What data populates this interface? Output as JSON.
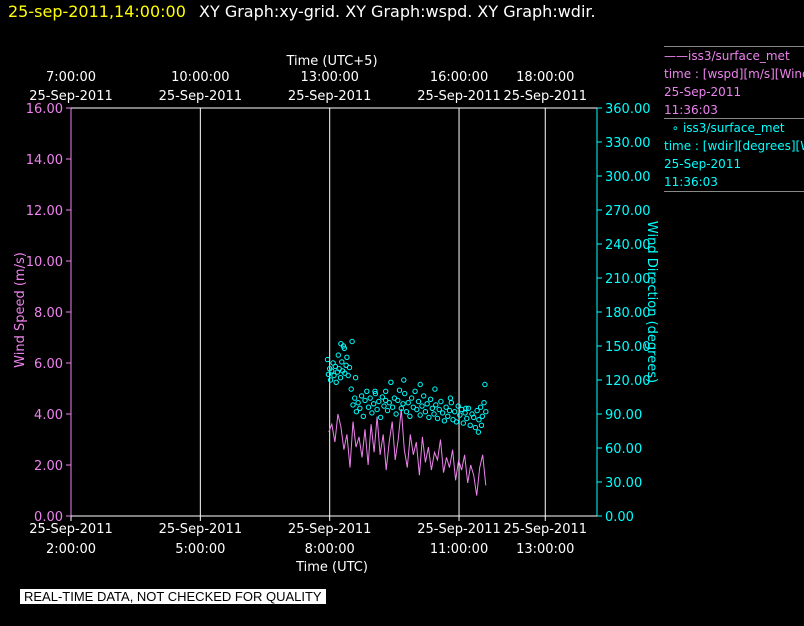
{
  "header": {
    "timestamp": "25-sep-2011,14:00:00",
    "titles": "XY Graph:xy-grid.  XY Graph:wspd.  XY Graph:wdir."
  },
  "legend": {
    "entries": [
      {
        "symbol": "——",
        "source": "iss3/surface_met",
        "line1": "time : [wspd][m/s][Wind",
        "date": "25-Sep-2011",
        "time": "11:36:03",
        "color": "#ee82ee"
      },
      {
        "symbol": "∘",
        "source": "iss3/surface_met",
        "line1": "time : [wdir][degrees][W",
        "date": "25-Sep-2011",
        "time": "11:36:03",
        "color": "#00ffff"
      }
    ]
  },
  "quality_note": "REAL-TIME DATA, NOT CHECKED FOR QUALITY",
  "colors": {
    "wspd": "#ee82ee",
    "wdir": "#00ffff",
    "grid": "#ffffff",
    "header": "#ffff00"
  },
  "chart_data": {
    "type": "line",
    "x_range_hours": [
      0.0,
      12.2
    ],
    "xlabel_bottom": "Time (UTC)",
    "xlabel_top": "Time (UTC+5)",
    "x_ticks": [
      {
        "x": 0.0,
        "bottom": [
          "25-Sep-2011",
          "2:00:00"
        ],
        "top": [
          "7:00:00",
          "25-Sep-2011"
        ]
      },
      {
        "x": 3.0,
        "bottom": [
          "25-Sep-2011",
          "5:00:00"
        ],
        "top": [
          "10:00:00",
          "25-Sep-2011"
        ]
      },
      {
        "x": 6.0,
        "bottom": [
          "25-Sep-2011",
          "8:00:00"
        ],
        "top": [
          "13:00:00",
          "25-Sep-2011"
        ]
      },
      {
        "x": 9.0,
        "bottom": [
          "25-Sep-2011",
          "11:00:00"
        ],
        "top": [
          "16:00:00",
          "25-Sep-2011"
        ]
      },
      {
        "x": 11.0,
        "bottom": [
          "25-Sep-2011",
          "13:00:00"
        ],
        "top": [
          "18:00:00",
          "25-Sep-2011"
        ]
      }
    ],
    "left_axis": {
      "label": "Wind Speed (m/s)",
      "range": [
        0,
        16
      ],
      "ticks": [
        "0.00",
        "2.00",
        "4.00",
        "6.00",
        "8.00",
        "10.00",
        "12.00",
        "14.00",
        "16.00"
      ]
    },
    "right_axis": {
      "label": "Wind Direction (degrees)",
      "range": [
        0,
        360
      ],
      "ticks": [
        "0.00",
        "30.00",
        "60.00",
        "90.00",
        "120.00",
        "150.00",
        "180.00",
        "210.00",
        "240.00",
        "270.00",
        "300.00",
        "330.00",
        "360.00"
      ]
    },
    "grid": "vertical",
    "series": [
      {
        "name": "iss3/surface_met time : [wspd][m/s]",
        "axis": "left",
        "style": "line",
        "x": [
          5.98,
          6.05,
          6.12,
          6.19,
          6.26,
          6.33,
          6.4,
          6.47,
          6.54,
          6.61,
          6.68,
          6.75,
          6.82,
          6.89,
          6.96,
          7.03,
          7.1,
          7.17,
          7.24,
          7.31,
          7.38,
          7.45,
          7.52,
          7.59,
          7.66,
          7.73,
          7.8,
          7.87,
          7.94,
          8.01,
          8.08,
          8.15,
          8.22,
          8.29,
          8.36,
          8.43,
          8.5,
          8.57,
          8.64,
          8.71,
          8.78,
          8.85,
          8.92,
          8.99,
          9.06,
          9.13,
          9.2,
          9.27,
          9.34,
          9.41,
          9.48,
          9.55,
          9.62
        ],
        "y": [
          3.3,
          3.6,
          2.9,
          4.0,
          3.5,
          2.6,
          3.2,
          1.9,
          3.7,
          2.7,
          3.1,
          2.3,
          3.4,
          2.0,
          3.6,
          2.5,
          3.9,
          2.4,
          3.2,
          1.8,
          2.9,
          3.7,
          2.2,
          3.0,
          4.2,
          2.6,
          1.9,
          3.2,
          2.4,
          2.9,
          1.6,
          3.1,
          2.1,
          2.7,
          1.8,
          2.5,
          2.2,
          3.0,
          1.7,
          2.3,
          1.9,
          2.6,
          1.4,
          2.2,
          1.8,
          2.4,
          1.3,
          2.0,
          1.6,
          0.8,
          1.9,
          2.4,
          1.2
        ]
      },
      {
        "name": "iss3/surface_met time : [wdir][degrees]",
        "axis": "right",
        "style": "points",
        "x": [
          5.95,
          5.97,
          6.0,
          6.02,
          6.05,
          6.08,
          6.1,
          6.13,
          6.15,
          6.18,
          6.2,
          6.22,
          6.25,
          6.28,
          6.3,
          6.32,
          6.35,
          6.38,
          6.4,
          6.43,
          6.46,
          6.5,
          6.54,
          6.58,
          6.62,
          6.66,
          6.7,
          6.74,
          6.78,
          6.82,
          6.86,
          6.9,
          6.94,
          6.98,
          7.02,
          7.06,
          7.1,
          7.14,
          7.18,
          7.22,
          7.26,
          7.3,
          7.34,
          7.38,
          7.42,
          7.46,
          7.5,
          7.54,
          7.58,
          7.62,
          7.66,
          7.7,
          7.74,
          7.78,
          7.82,
          7.86,
          7.9,
          7.94,
          7.98,
          8.02,
          8.06,
          8.1,
          8.14,
          8.18,
          8.22,
          8.26,
          8.3,
          8.34,
          8.38,
          8.42,
          8.46,
          8.5,
          8.54,
          8.58,
          8.62,
          8.66,
          8.7,
          8.74,
          8.78,
          8.82,
          8.86,
          8.9,
          8.94,
          8.98,
          9.02,
          9.06,
          9.1,
          9.14,
          9.18,
          9.22,
          9.26,
          9.3,
          9.34,
          9.38,
          9.42,
          9.46,
          9.5,
          9.54,
          9.58,
          9.62,
          6.26,
          6.34,
          6.52,
          6.6,
          7.05,
          7.3,
          7.72,
          8.1,
          8.44,
          8.8,
          9.16,
          9.52,
          9.6,
          9.45
        ],
        "y": [
          138,
          125,
          130,
          120,
          128,
          135,
          124,
          132,
          118,
          127,
          142,
          130,
          122,
          136,
          128,
          150,
          126,
          133,
          140,
          124,
          131,
          112,
          98,
          104,
          92,
          100,
          95,
          106,
          88,
          102,
          110,
          96,
          104,
          91,
          99,
          108,
          94,
          101,
          87,
          105,
          97,
          110,
          93,
          100,
          118,
          96,
          104,
          90,
          102,
          111,
          95,
          99,
          108,
          92,
          100,
          88,
          104,
          96,
          110,
          94,
          101,
          89,
          97,
          106,
          92,
          99,
          87,
          103,
          95,
          90,
          98,
          86,
          94,
          101,
          91,
          84,
          96,
          88,
          93,
          100,
          85,
          92,
          83,
          97,
          89,
          94,
          82,
          91,
          86,
          95,
          80,
          90,
          87,
          78,
          93,
          85,
          96,
          88,
          100,
          92,
          152,
          148,
          154,
          122,
          110,
          102,
          120,
          116,
          112,
          104,
          95,
          80,
          116,
          74
        ]
      }
    ]
  }
}
